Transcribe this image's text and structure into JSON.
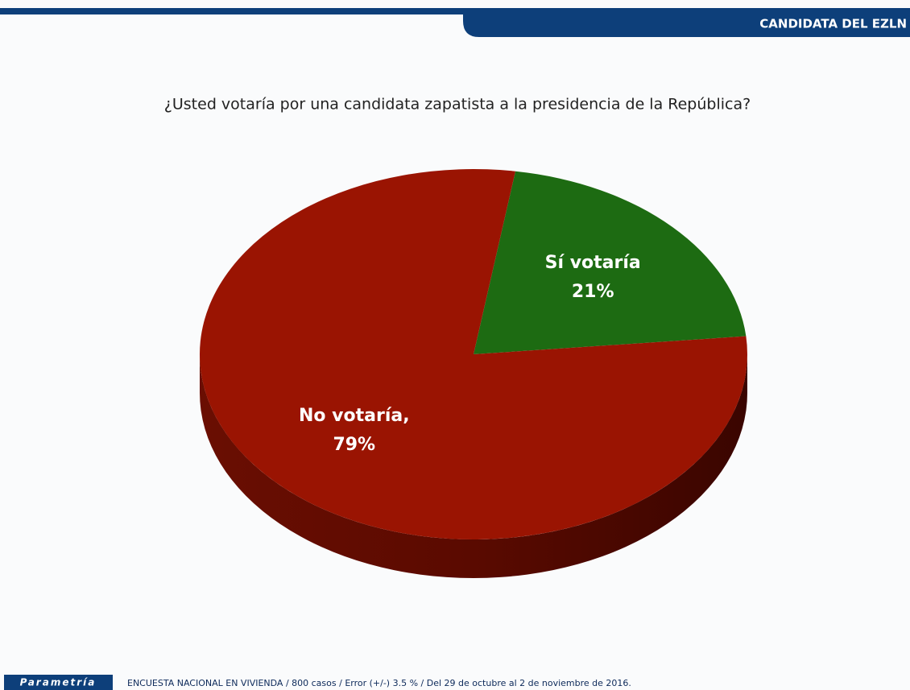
{
  "header": {
    "title": "CANDIDATA DEL EZLN"
  },
  "chart_data": {
    "type": "pie",
    "title": "¿Usted votaría por una candidata zapatista a la presidencia de la República?",
    "categories": [
      "Sí votaría",
      "No votaría,"
    ],
    "values": [
      21,
      79
    ],
    "value_labels": [
      "21%",
      "79%"
    ],
    "colors": [
      "#1d6b12",
      "#9a1402"
    ]
  },
  "footer": {
    "brand": "Parametría",
    "note": "ENCUESTA NACIONAL EN VIVIENDA / 800 casos / Error (+/-) 3.5 % / Del 29 de octubre al 2 de noviembre de 2016."
  }
}
